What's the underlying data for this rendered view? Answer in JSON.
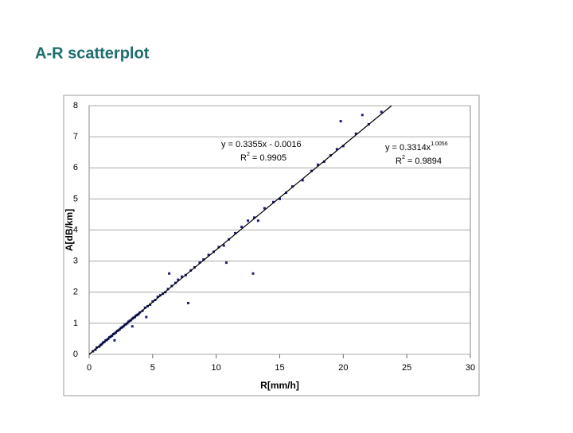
{
  "title": "A-R scatterplot",
  "chart_data": {
    "type": "scatter",
    "xlabel": "R[mm/h]",
    "ylabel": "A[dB/km]",
    "xlim": [
      0,
      30
    ],
    "ylim": [
      0,
      8
    ],
    "xticks": [
      0,
      5,
      10,
      15,
      20,
      25,
      30
    ],
    "yticks": [
      0,
      1,
      2,
      3,
      4,
      5,
      6,
      7,
      8
    ],
    "grid": true,
    "color": "#1a1f7a",
    "x": [
      0.3,
      0.5,
      0.6,
      0.8,
      0.9,
      1.0,
      1.1,
      1.2,
      1.3,
      1.4,
      1.5,
      1.6,
      1.7,
      1.8,
      1.9,
      2.0,
      2.1,
      2.2,
      2.3,
      2.4,
      2.5,
      2.6,
      2.7,
      2.8,
      2.9,
      3.0,
      3.1,
      3.2,
      3.3,
      3.4,
      3.5,
      3.6,
      3.7,
      3.8,
      3.9,
      4.0,
      4.2,
      4.4,
      4.6,
      4.8,
      5.0,
      5.2,
      5.4,
      5.6,
      5.8,
      6.0,
      6.2,
      6.5,
      6.8,
      7.0,
      7.3,
      7.6,
      8.0,
      8.3,
      8.7,
      9.0,
      9.4,
      9.8,
      10.2,
      10.6,
      11.0,
      11.5,
      12.0,
      12.5,
      13.0,
      13.3,
      13.8,
      14.5,
      15.0,
      15.5,
      16.0,
      16.8,
      17.5,
      18.0,
      18.5,
      19.0,
      19.5,
      20.0,
      21.0,
      22.0,
      23.0,
      7.8,
      12.9,
      10.8,
      4.5,
      6.3,
      19.8,
      21.5,
      3.4,
      2.0
    ],
    "values": [
      0.1,
      0.15,
      0.22,
      0.25,
      0.3,
      0.33,
      0.38,
      0.4,
      0.45,
      0.46,
      0.5,
      0.55,
      0.57,
      0.6,
      0.65,
      0.67,
      0.7,
      0.75,
      0.77,
      0.8,
      0.85,
      0.87,
      0.9,
      0.95,
      0.97,
      1.0,
      1.05,
      1.08,
      1.1,
      1.15,
      1.18,
      1.2,
      1.25,
      1.27,
      1.3,
      1.35,
      1.4,
      1.5,
      1.55,
      1.6,
      1.7,
      1.75,
      1.85,
      1.9,
      1.95,
      2.0,
      2.1,
      2.2,
      2.3,
      2.4,
      2.5,
      2.55,
      2.7,
      2.8,
      2.95,
      3.05,
      3.2,
      3.3,
      3.45,
      3.5,
      3.7,
      3.9,
      4.1,
      4.3,
      4.4,
      4.3,
      4.7,
      4.9,
      5.0,
      5.2,
      5.4,
      5.6,
      5.9,
      6.1,
      6.2,
      6.4,
      6.6,
      6.7,
      7.1,
      7.4,
      7.8,
      1.65,
      2.6,
      2.95,
      1.2,
      2.6,
      7.5,
      7.7,
      0.9,
      0.45
    ],
    "trendlines": [
      {
        "x": [
          0,
          23.8
        ],
        "values": [
          0,
          8
        ]
      }
    ],
    "annotations": [
      {
        "text": "y = 0.3355x - 0.0016"
      },
      {
        "text": "R",
        "sup": "2",
        "rest": " = 0.9905"
      },
      {
        "text": "y = 0.3314x",
        "sup": "1.0056"
      },
      {
        "text": "R",
        "sup": "2",
        "rest": " = 0.9894"
      }
    ]
  }
}
